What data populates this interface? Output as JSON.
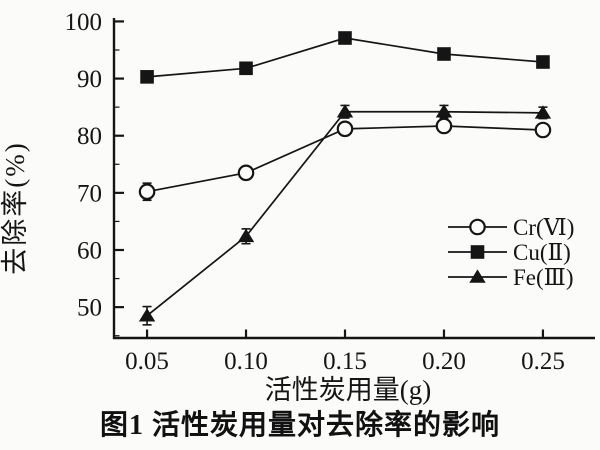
{
  "figure": {
    "caption": "图1  活性炭用量对去除率的影响",
    "ink_color": "#151515",
    "background_color": "#fbfbfa"
  },
  "chart_data": {
    "type": "line",
    "title": "",
    "xlabel": "活性炭用量(g)",
    "ylabel": "去除率(%)",
    "x": [
      0.05,
      0.1,
      0.15,
      0.2,
      0.25
    ],
    "x_tick_labels": [
      "0.05",
      "0.10",
      "0.15",
      "0.20",
      "0.25"
    ],
    "y_ticks": [
      50,
      60,
      70,
      80,
      90,
      100
    ],
    "y_minor_ticks": [
      45,
      55,
      65,
      75,
      85,
      95
    ],
    "xlim": [
      0.0333,
      0.2763
    ],
    "ylim": [
      44.6,
      100.6
    ],
    "grid": false,
    "legend_position": "right-middle",
    "series": [
      {
        "name": "Cr(Ⅵ)",
        "marker": "circle-open",
        "values": [
          70.2,
          73.5,
          81.2,
          81.7,
          81.0
        ],
        "errors": [
          1.5,
          0.9,
          0.9,
          0.9,
          0.9
        ]
      },
      {
        "name": "Cu(Ⅱ)",
        "marker": "square-filled",
        "values": [
          90.3,
          91.8,
          97.1,
          94.3,
          92.9
        ],
        "errors": [
          0.9,
          0.9,
          1.0,
          0.9,
          0.9
        ]
      },
      {
        "name": "Fe(Ⅲ)",
        "marker": "triangle-filled",
        "values": [
          48.5,
          62.4,
          84.2,
          84.2,
          84.0
        ],
        "errors": [
          1.6,
          1.3,
          1.1,
          1.1,
          1.0
        ]
      }
    ]
  }
}
